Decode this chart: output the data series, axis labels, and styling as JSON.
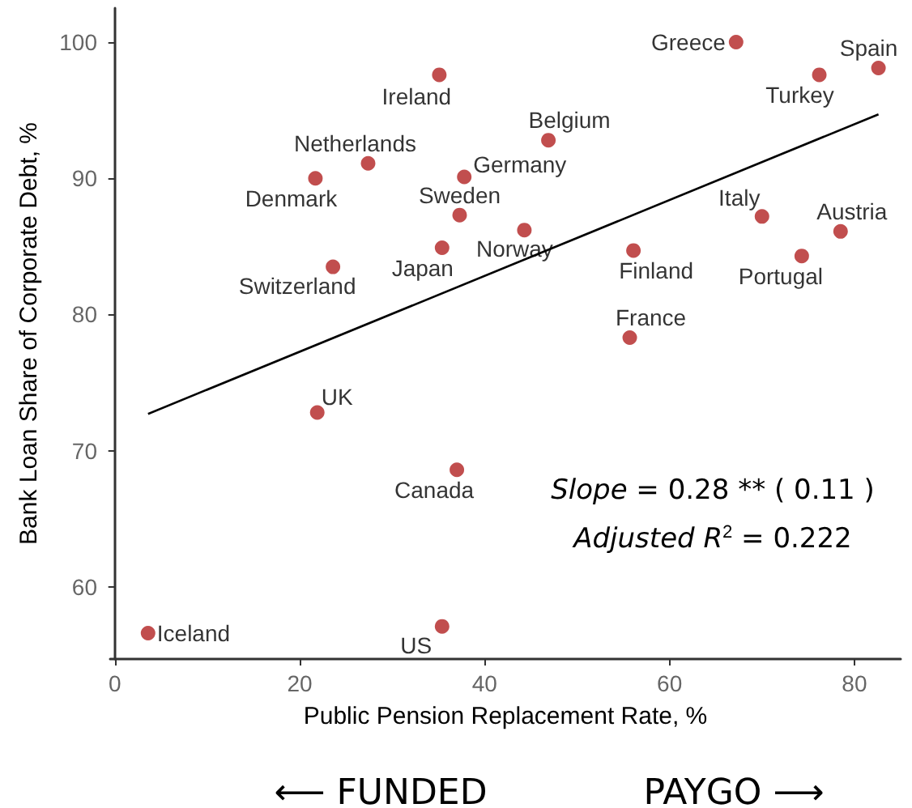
{
  "chart_data": {
    "type": "scatter",
    "xlabel": "Public Pension Replacement Rate, %",
    "ylabel": "Bank Loan Share of Corporate Debt, %",
    "xlim": [
      -0.5,
      85
    ],
    "xticks": [
      0,
      20,
      40,
      60,
      80
    ],
    "ylim": [
      54.7,
      102.5
    ],
    "yticks": [
      60,
      70,
      80,
      90,
      100
    ],
    "grid": false,
    "marker": "circle",
    "annotations": [
      "Slope = 0.28 ** ( 0.11 )",
      "Adjusted R$^{2}$ = 0.222",
      "⟵ FUNDED",
      "PAYGO ⟶"
    ],
    "series": [
      {
        "color": "#b22222",
        "x": [
          67.2,
          82.6,
          76.2,
          35.1,
          46.9,
          27.4,
          21.7,
          37.8,
          37.3,
          44.3,
          70.0,
          78.5,
          23.6,
          35.4,
          56.1,
          74.3,
          55.7,
          21.9,
          37.0,
          3.6,
          35.4
        ],
        "values": [
          100.0,
          98.1,
          97.6,
          97.6,
          92.8,
          91.1,
          90.0,
          90.1,
          87.3,
          86.2,
          87.2,
          86.1,
          83.5,
          84.9,
          84.7,
          84.3,
          78.3,
          72.8,
          68.6,
          56.6,
          57.1
        ],
        "value_labels": [
          "Greece",
          "Spain",
          "Turkey",
          "Ireland",
          "Belgium",
          "Netherlands",
          "Denmark",
          "Germany",
          "Sweden",
          "Norway",
          "Italy",
          "Austria",
          "Switzerland",
          "Japan",
          "Finland",
          "Portugal",
          "France",
          "UK",
          "Canada",
          "Iceland",
          "US"
        ]
      },
      {
        "type": "line",
        "color": "#000000",
        "marker": "none",
        "line_style": "solid",
        "x": [
          3.6,
          82.6
        ],
        "values": [
          72.7,
          94.7
        ]
      }
    ]
  }
}
